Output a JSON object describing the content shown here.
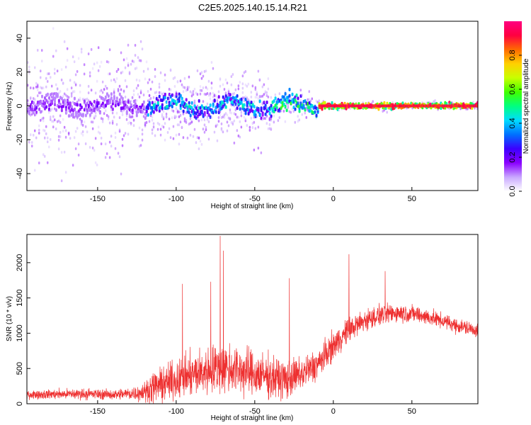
{
  "title": "C2E5.2025.140.15.14.R21",
  "colors": {
    "snr_line": "#ee3030",
    "colormap": [
      "#ffffff",
      "#c9a8ff",
      "#8a00ff",
      "#3c00ff",
      "#0070ff",
      "#00dcff",
      "#00ff80",
      "#40ff00",
      "#c8ff00",
      "#ffd000",
      "#ff6a00",
      "#ff0040",
      "#ff0080"
    ]
  },
  "chart_data": [
    {
      "type": "heatmap",
      "title": "C2E5.2025.140.15.14.R21",
      "xlabel": "Height of straight line (km)",
      "ylabel": "Frequency (Hz)",
      "xlim": [
        -195,
        92
      ],
      "ylim": [
        -50,
        50
      ],
      "xticks": [
        -150,
        -100,
        -50,
        0,
        50
      ],
      "yticks": [
        -40,
        -20,
        0,
        20,
        40
      ],
      "grid": false,
      "colorbar": {
        "label": "Normalized spectral amplitude",
        "range": [
          0,
          1
        ],
        "ticks": [
          "0.0",
          "0.2",
          "0.4",
          "0.6",
          "0.8"
        ]
      },
      "description_points": {
        "ridge_frequency_hz": 0,
        "regions": [
          {
            "x_from": -195,
            "x_to": -120,
            "spread_hz": 48,
            "core_amplitude": 0.2
          },
          {
            "x_from": -120,
            "x_to": -40,
            "spread_hz": 30,
            "core_amplitude": 0.45
          },
          {
            "x_from": -40,
            "x_to": -10,
            "spread_hz": 12,
            "core_amplitude": 0.55
          },
          {
            "x_from": -10,
            "x_to": 92,
            "spread_hz": 4,
            "core_amplitude": 0.95
          }
        ]
      }
    },
    {
      "type": "line",
      "xlabel": "Height of straight line (km)",
      "ylabel": "SNR (10 * v/v)",
      "xlim": [
        -195,
        92
      ],
      "ylim": [
        0,
        2400
      ],
      "xticks": [
        -150,
        -100,
        -50,
        0,
        50
      ],
      "yticks": [
        0,
        500,
        1000,
        1500,
        2000
      ],
      "grid": false,
      "envelope": {
        "x": [
          -195,
          -160,
          -140,
          -125,
          -120,
          -115,
          -100,
          -80,
          -70,
          -60,
          -50,
          -40,
          -30,
          -20,
          -10,
          0,
          10,
          20,
          30,
          40,
          50,
          60,
          70,
          80,
          92
        ],
        "base": [
          130,
          140,
          130,
          150,
          170,
          230,
          340,
          470,
          520,
          480,
          420,
          380,
          340,
          420,
          560,
          820,
          1050,
          1180,
          1260,
          1290,
          1280,
          1230,
          1170,
          1100,
          1040
        ],
        "amp": [
          110,
          150,
          130,
          200,
          260,
          420,
          520,
          640,
          700,
          650,
          610,
          560,
          520,
          450,
          420,
          380,
          330,
          300,
          270,
          250,
          230,
          220,
          200,
          200,
          190
        ]
      },
      "peaks": [
        {
          "x": -72,
          "y": 2380
        },
        {
          "x": -70,
          "y": 2170
        },
        {
          "x": 10,
          "y": 2120
        },
        {
          "x": 33,
          "y": 1880
        },
        {
          "x": -28,
          "y": 1780
        },
        {
          "x": -96,
          "y": 1700
        },
        {
          "x": -78,
          "y": 1730
        }
      ]
    }
  ]
}
